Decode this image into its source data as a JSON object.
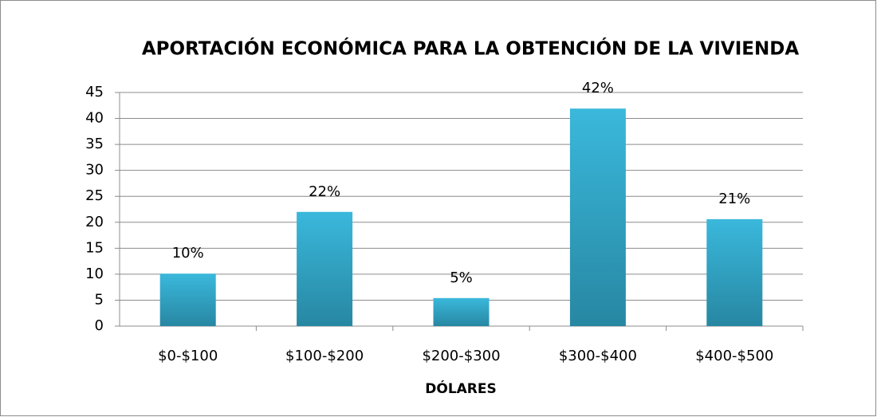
{
  "chart_data": {
    "type": "bar",
    "title": "APORTACIÓN ECONÓMICA PARA LA OBTENCIÓN DE LA VIVIENDA",
    "x_label": "DÓLARES",
    "categories": [
      "$0-$100",
      "$100-$200",
      "$200-$300",
      "$300-$400",
      "$400-$500"
    ],
    "values": [
      10.1,
      22,
      5.4,
      41.9,
      20.6
    ],
    "value_labels": [
      "10%",
      "22%",
      "5%",
      "42%",
      "21%"
    ],
    "color": "#36afd3",
    "ylim": [
      0,
      45
    ],
    "yticks": [
      0,
      5,
      10,
      15,
      20,
      25,
      30,
      35,
      40,
      45
    ],
    "grid": true
  }
}
